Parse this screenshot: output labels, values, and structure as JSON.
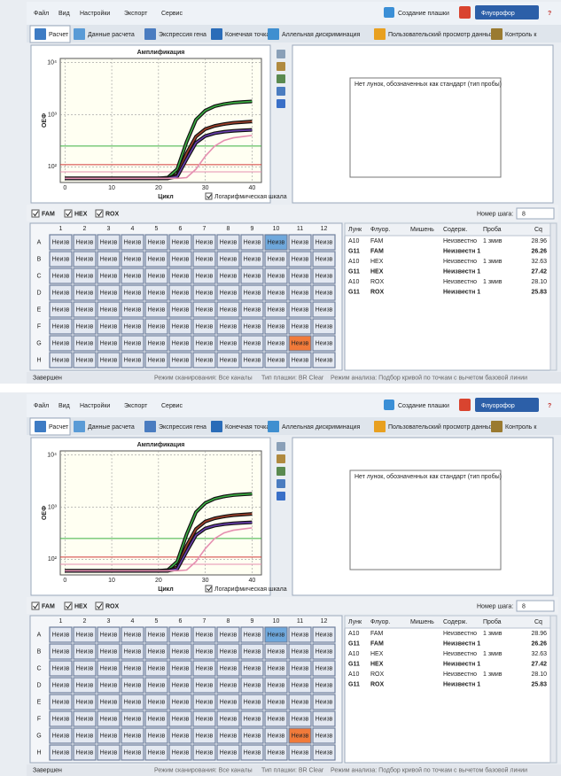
{
  "menu": [
    "Файл",
    "Вид",
    "Настройки",
    "Экспорт",
    "Сервис"
  ],
  "toolbar": {
    "plate_setup": "Создание плашки",
    "fluorophore": "Флуорофор",
    "help": "?"
  },
  "tabs": [
    "Расчет",
    "Данные расчета",
    "Экспрессия гена",
    "Конечная точка",
    "Аллельная дискриминация",
    "Пользовательский просмотр данных",
    "Контроль к"
  ],
  "chart_data": {
    "type": "line",
    "title": "Амплификация",
    "x_label": "Цикл",
    "y_label": "ОЕФ",
    "log_scale": true,
    "grid": true,
    "log_scale_label": "Логарифмическая шкала",
    "xlim": [
      -1,
      42
    ],
    "ylim": [
      50,
      12000
    ],
    "xticks": [
      0,
      10,
      20,
      30,
      40
    ],
    "yticks": [
      {
        "value": 100,
        "label": "10²"
      },
      {
        "value": 1000,
        "label": "10³"
      },
      {
        "value": 10000,
        "label": "10⁴"
      }
    ],
    "x": [
      0,
      5,
      10,
      15,
      20,
      22,
      24,
      26,
      28,
      30,
      32,
      34,
      36,
      38,
      40
    ],
    "series": [
      {
        "color": "#3cb043",
        "outlined": true,
        "values": [
          60,
          60,
          60,
          60,
          60,
          62,
          90,
          300,
          800,
          1200,
          1450,
          1600,
          1700,
          1750,
          1800
        ]
      },
      {
        "color": "#a0402a",
        "outlined": true,
        "values": [
          60,
          60,
          60,
          60,
          60,
          60,
          70,
          180,
          380,
          530,
          610,
          660,
          700,
          720,
          740
        ]
      },
      {
        "color": "#6a3fb0",
        "outlined": true,
        "values": [
          60,
          60,
          60,
          60,
          60,
          60,
          65,
          140,
          290,
          390,
          440,
          470,
          490,
          500,
          510
        ]
      },
      {
        "color": "#e58fb0",
        "outlined": false,
        "values": [
          60,
          60,
          60,
          60,
          60,
          60,
          60,
          62,
          90,
          160,
          250,
          320,
          360,
          380,
          400
        ]
      }
    ],
    "thresholds": [
      {
        "color": "#3cb043",
        "value": 250
      },
      {
        "color": "#d23a3a",
        "value": 110
      },
      {
        "color": "#e58fb0",
        "value": 80
      }
    ]
  },
  "standard_curve": {
    "message": "Нет лунок, обозначенных как стандарт (тип пробы)"
  },
  "fluorophores": [
    {
      "label": "FAM",
      "checked": true
    },
    {
      "label": "HEX",
      "checked": true
    },
    {
      "label": "ROX",
      "checked": true
    }
  ],
  "step": {
    "label": "Номер шага:",
    "value": "8"
  },
  "plate": {
    "columns": [
      "1",
      "2",
      "3",
      "4",
      "5",
      "6",
      "7",
      "8",
      "9",
      "10",
      "11",
      "12"
    ],
    "rows": [
      "A",
      "B",
      "C",
      "D",
      "E",
      "F",
      "G",
      "H"
    ],
    "cells": [
      [
        "Неизв",
        "Неизв",
        "Неизв",
        "Неизв",
        "Неизв",
        "Неизв",
        "Неизв",
        "Неизв",
        "Неизв",
        "Неизв",
        "Неизв",
        "Неизв"
      ],
      [
        "Неизв",
        "Неизв",
        "Неизв",
        "Неизв",
        "Неизв",
        "Неизв",
        "Неизв",
        "Неизв",
        "Неизв",
        "Неизв",
        "Неизв",
        "Неизв"
      ],
      [
        "Неизв",
        "Неизв",
        "Неизв",
        "Неизв",
        "Неизв",
        "Неизв",
        "Неизв",
        "Неизв",
        "Неизв",
        "Неизв",
        "Неизв",
        "Неизв"
      ],
      [
        "Неизв",
        "Неизв",
        "Неизв",
        "Неизв",
        "Неизв",
        "Неизв",
        "Неизв",
        "Неизв",
        "Неизв",
        "Неизв",
        "Неизв",
        "Неизв"
      ],
      [
        "Неизв",
        "Неизв",
        "Неизв",
        "Неизв",
        "Неизв",
        "Неизв",
        "Неизв",
        "Неизв",
        "Неизв",
        "Неизв",
        "Неизв",
        "Неизв"
      ],
      [
        "Неизв",
        "Неизв",
        "Неизв",
        "Неизв",
        "Неизв",
        "Неизв",
        "Неизв",
        "Неизв",
        "Неизв",
        "Неизв",
        "Неизв",
        "Неизв"
      ],
      [
        "Неизв",
        "Неизв",
        "Неизв",
        "Неизв",
        "Неизв",
        "Неизв",
        "Неизв",
        "Неизв",
        "Неизв",
        "Неизв",
        "Неизв",
        "Неизв"
      ],
      [
        "Неизв",
        "Неизв",
        "Неизв",
        "Неизв",
        "Неизв",
        "Неизв",
        "Неизв",
        "Неизв",
        "Неизв",
        "Неизв",
        "Неизв",
        "Неизв"
      ]
    ],
    "highlighted": [
      {
        "row": "A",
        "column": "10",
        "color": "#6fa8dc"
      },
      {
        "row": "G",
        "column": "11",
        "color": "#f07a3a"
      }
    ]
  },
  "results": {
    "headers": [
      "Лунк",
      "Флуор.",
      "Мишень",
      "Содерж.",
      "Проба",
      "Cq"
    ],
    "rows": [
      {
        "well": "A10",
        "fluor": "FAM",
        "content": "Неизвестно",
        "sample": "1 змив",
        "cq": "28.96",
        "bold": false
      },
      {
        "well": "G11",
        "fluor": "FAM",
        "content": "Неизвестн 1",
        "cq": "26.26",
        "bold": true
      },
      {
        "well": "A10",
        "fluor": "HEX",
        "content": "Неизвестно",
        "sample": "1 змив",
        "cq": "32.63",
        "bold": false
      },
      {
        "well": "G11",
        "fluor": "HEX",
        "content": "Неизвестн 1",
        "cq": "27.42",
        "bold": true
      },
      {
        "well": "A10",
        "fluor": "ROX",
        "content": "Неизвестно",
        "sample": "1 змив",
        "cq": "28.10",
        "bold": false
      },
      {
        "well": "G11",
        "fluor": "ROX",
        "content": "Неизвестн 1",
        "cq": "25.83",
        "bold": true
      }
    ]
  },
  "status": [
    "Завершен",
    "Режим сканирования: Все каналы",
    "Тип плашки: BR Clear",
    "Режим анализа: Подбор кривой по точкам с вычетом базовой линии"
  ]
}
